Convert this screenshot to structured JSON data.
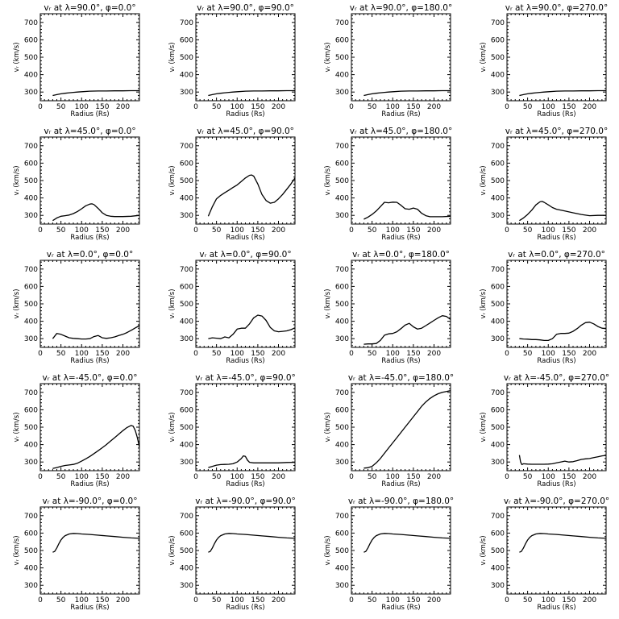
{
  "figure": {
    "xlabel": "Radius (Rs)",
    "ylabel": "vᵣ (km/s)",
    "xlim": [
      0,
      240
    ],
    "ylim": [
      250,
      750
    ],
    "xticks": [
      0,
      50,
      100,
      150,
      200
    ],
    "yticks": [
      300,
      400,
      500,
      600,
      700
    ]
  },
  "chart_data": [
    {
      "type": "line",
      "title": "vᵣ at λ=90.0°, φ=0.0°",
      "x": [
        30,
        40,
        50,
        60,
        70,
        80,
        90,
        100,
        120,
        140,
        160,
        180,
        200,
        220,
        240
      ],
      "y": [
        280,
        285,
        290,
        293,
        296,
        298,
        300,
        302,
        305,
        306,
        306,
        307,
        307,
        308,
        308
      ]
    },
    {
      "type": "line",
      "title": "vᵣ at λ=90.0°, φ=90.0°",
      "x": [
        30,
        40,
        50,
        60,
        70,
        80,
        90,
        100,
        120,
        140,
        160,
        180,
        200,
        220,
        240
      ],
      "y": [
        280,
        285,
        290,
        293,
        296,
        298,
        300,
        302,
        305,
        306,
        306,
        307,
        307,
        308,
        308
      ]
    },
    {
      "type": "line",
      "title": "vᵣ at λ=90.0°, φ=180.0°",
      "x": [
        30,
        40,
        50,
        60,
        70,
        80,
        90,
        100,
        120,
        140,
        160,
        180,
        200,
        220,
        240
      ],
      "y": [
        280,
        285,
        290,
        293,
        296,
        298,
        300,
        302,
        305,
        306,
        306,
        307,
        307,
        308,
        308
      ]
    },
    {
      "type": "line",
      "title": "vᵣ at λ=90.0°, φ=270.0°",
      "x": [
        30,
        40,
        50,
        60,
        70,
        80,
        90,
        100,
        120,
        140,
        160,
        180,
        200,
        220,
        240
      ],
      "y": [
        280,
        285,
        290,
        293,
        296,
        298,
        300,
        302,
        305,
        306,
        306,
        307,
        307,
        308,
        308
      ]
    },
    {
      "type": "line",
      "title": "vᵣ at λ=45.0°, φ=0.0°",
      "x": [
        30,
        40,
        50,
        60,
        70,
        80,
        90,
        100,
        110,
        120,
        125,
        130,
        140,
        150,
        160,
        170,
        180,
        200,
        220,
        240
      ],
      "y": [
        270,
        285,
        295,
        298,
        302,
        310,
        322,
        338,
        355,
        365,
        366,
        362,
        340,
        315,
        300,
        295,
        293,
        293,
        295,
        300
      ]
    },
    {
      "type": "line",
      "title": "vᵣ at λ=45.0°, φ=90.0°",
      "x": [
        30,
        40,
        50,
        60,
        70,
        80,
        90,
        100,
        110,
        120,
        130,
        135,
        140,
        150,
        160,
        170,
        180,
        190,
        200,
        210,
        220,
        230,
        240
      ],
      "y": [
        295,
        350,
        395,
        415,
        430,
        445,
        460,
        475,
        495,
        515,
        530,
        532,
        525,
        480,
        420,
        385,
        370,
        375,
        395,
        420,
        450,
        480,
        515
      ]
    },
    {
      "type": "line",
      "title": "vᵣ at λ=45.0°, φ=180.0°",
      "x": [
        30,
        40,
        50,
        60,
        70,
        80,
        90,
        100,
        110,
        120,
        130,
        140,
        150,
        160,
        170,
        180,
        190,
        200,
        220,
        240
      ],
      "y": [
        278,
        290,
        305,
        325,
        350,
        375,
        372,
        376,
        375,
        358,
        338,
        335,
        342,
        335,
        312,
        298,
        292,
        292,
        292,
        295
      ]
    },
    {
      "type": "line",
      "title": "vᵣ at λ=45.0°, φ=270.0°",
      "x": [
        30,
        40,
        50,
        60,
        70,
        80,
        85,
        90,
        100,
        110,
        120,
        140,
        160,
        180,
        200,
        220,
        240
      ],
      "y": [
        270,
        285,
        305,
        330,
        360,
        378,
        380,
        375,
        360,
        345,
        335,
        325,
        315,
        305,
        298,
        300,
        300
      ]
    },
    {
      "type": "line",
      "title": "vᵣ at λ=0.0°, φ=0.0°",
      "x": [
        30,
        40,
        50,
        60,
        70,
        80,
        90,
        100,
        110,
        120,
        130,
        140,
        150,
        160,
        170,
        180,
        190,
        200,
        210,
        220,
        230,
        240
      ],
      "y": [
        300,
        330,
        325,
        315,
        305,
        302,
        300,
        298,
        298,
        300,
        312,
        318,
        305,
        302,
        305,
        310,
        318,
        325,
        335,
        348,
        362,
        375
      ]
    },
    {
      "type": "line",
      "title": "vᵣ at λ=0.0°, φ=90.0°",
      "x": [
        30,
        40,
        50,
        60,
        70,
        80,
        90,
        100,
        110,
        120,
        130,
        140,
        150,
        160,
        170,
        180,
        190,
        200,
        210,
        220,
        230,
        240
      ],
      "y": [
        300,
        305,
        303,
        300,
        310,
        305,
        325,
        355,
        360,
        360,
        385,
        420,
        435,
        430,
        405,
        365,
        345,
        340,
        342,
        345,
        352,
        362
      ]
    },
    {
      "type": "line",
      "title": "vᵣ at λ=0.0°, φ=180.0°",
      "x": [
        30,
        40,
        50,
        60,
        70,
        80,
        90,
        100,
        110,
        120,
        130,
        140,
        150,
        160,
        170,
        180,
        190,
        200,
        210,
        220,
        230,
        240
      ],
      "y": [
        268,
        270,
        270,
        272,
        290,
        320,
        328,
        330,
        340,
        358,
        378,
        388,
        368,
        355,
        360,
        375,
        390,
        405,
        420,
        432,
        428,
        410
      ]
    },
    {
      "type": "line",
      "title": "vᵣ at λ=0.0°, φ=270.0°",
      "x": [
        30,
        40,
        50,
        60,
        70,
        80,
        90,
        100,
        110,
        120,
        130,
        140,
        150,
        160,
        170,
        180,
        190,
        200,
        210,
        220,
        230,
        240
      ],
      "y": [
        300,
        298,
        297,
        295,
        295,
        293,
        290,
        290,
        300,
        325,
        330,
        330,
        332,
        342,
        358,
        378,
        392,
        395,
        385,
        370,
        360,
        358
      ]
    },
    {
      "type": "line",
      "title": "vᵣ at λ=-45.0°, φ=0.0°",
      "x": [
        30,
        40,
        50,
        60,
        70,
        80,
        90,
        100,
        110,
        120,
        130,
        140,
        150,
        160,
        170,
        180,
        190,
        200,
        210,
        220,
        225,
        230,
        235,
        240
      ],
      "y": [
        263,
        268,
        275,
        280,
        283,
        286,
        293,
        305,
        318,
        332,
        348,
        365,
        382,
        400,
        420,
        440,
        460,
        480,
        498,
        510,
        505,
        480,
        440,
        385
      ]
    },
    {
      "type": "line",
      "title": "vᵣ at λ=-45.0°, φ=90.0°",
      "x": [
        30,
        40,
        50,
        60,
        70,
        80,
        90,
        100,
        110,
        115,
        120,
        125,
        130,
        140,
        160,
        180,
        200,
        220,
        240
      ],
      "y": [
        268,
        275,
        282,
        285,
        286,
        287,
        290,
        300,
        320,
        335,
        332,
        310,
        298,
        295,
        295,
        295,
        295,
        297,
        298
      ]
    },
    {
      "type": "line",
      "title": "vᵣ at λ=-45.0°, φ=180.0°",
      "x": [
        30,
        40,
        50,
        60,
        70,
        80,
        90,
        100,
        110,
        120,
        130,
        140,
        150,
        160,
        170,
        180,
        190,
        200,
        210,
        220,
        230,
        240
      ],
      "y": [
        265,
        267,
        275,
        295,
        320,
        350,
        380,
        410,
        440,
        470,
        500,
        530,
        560,
        590,
        620,
        645,
        665,
        680,
        692,
        700,
        705,
        710
      ]
    },
    {
      "type": "line",
      "title": "vᵣ at λ=-45.0°, φ=270.0°",
      "x": [
        30,
        33,
        36,
        40,
        50,
        60,
        70,
        80,
        90,
        100,
        110,
        120,
        130,
        140,
        150,
        160,
        170,
        180,
        190,
        200,
        210,
        220,
        230,
        240
      ],
      "y": [
        340,
        300,
        285,
        290,
        288,
        287,
        287,
        287,
        287,
        288,
        290,
        295,
        300,
        305,
        300,
        302,
        308,
        315,
        318,
        320,
        325,
        330,
        335,
        338
      ]
    },
    {
      "type": "line",
      "title": "vᵣ at λ=-90.0°, φ=0.0°",
      "x": [
        30,
        35,
        40,
        45,
        50,
        55,
        60,
        70,
        80,
        90,
        100,
        120,
        140,
        160,
        180,
        200,
        220,
        240
      ],
      "y": [
        490,
        495,
        515,
        540,
        560,
        575,
        585,
        595,
        598,
        597,
        595,
        592,
        588,
        584,
        580,
        576,
        572,
        570
      ]
    },
    {
      "type": "line",
      "title": "vᵣ at λ=-90.0°, φ=90.0°",
      "x": [
        30,
        35,
        40,
        45,
        50,
        55,
        60,
        70,
        80,
        90,
        100,
        120,
        140,
        160,
        180,
        200,
        220,
        240
      ],
      "y": [
        490,
        495,
        515,
        540,
        560,
        575,
        585,
        595,
        598,
        597,
        595,
        592,
        588,
        584,
        580,
        576,
        572,
        570
      ]
    },
    {
      "type": "line",
      "title": "vᵣ at λ=-90.0°, φ=180.0°",
      "x": [
        30,
        35,
        40,
        45,
        50,
        55,
        60,
        70,
        80,
        90,
        100,
        120,
        140,
        160,
        180,
        200,
        220,
        240
      ],
      "y": [
        490,
        495,
        515,
        540,
        560,
        575,
        585,
        595,
        598,
        597,
        595,
        592,
        588,
        584,
        580,
        576,
        572,
        570
      ]
    },
    {
      "type": "line",
      "title": "vᵣ at λ=-90.0°, φ=270.0°",
      "x": [
        30,
        35,
        40,
        45,
        50,
        55,
        60,
        70,
        80,
        90,
        100,
        120,
        140,
        160,
        180,
        200,
        220,
        240
      ],
      "y": [
        490,
        495,
        515,
        540,
        560,
        575,
        585,
        595,
        598,
        597,
        595,
        592,
        588,
        584,
        580,
        576,
        572,
        570
      ]
    }
  ]
}
